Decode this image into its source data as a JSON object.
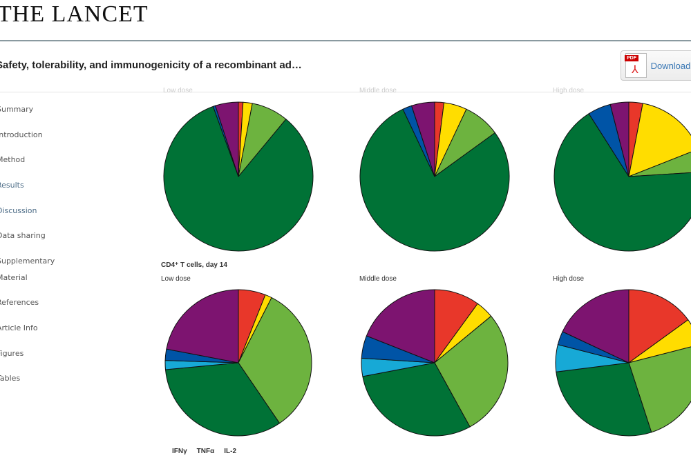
{
  "header": {
    "logo": "THE LANCET",
    "article_title": "Safety, tolerability, and immunogenicity of a recombinant ad…",
    "download_label": "Download PDF",
    "pdf_badge": "PDF"
  },
  "sidebar": {
    "items": [
      {
        "label": "Summary"
      },
      {
        "label": "Introduction"
      },
      {
        "label": "Method"
      },
      {
        "label": "Results"
      },
      {
        "label": "Discussion"
      },
      {
        "label": "Data sharing"
      },
      {
        "label": "Supplementary"
      },
      {
        "label": "Material"
      },
      {
        "label": "References"
      },
      {
        "label": "Article Info"
      },
      {
        "label": "Figures"
      },
      {
        "label": "Tables"
      }
    ]
  },
  "figure": {
    "section_label": "CD4⁺ T cells, day 14",
    "top_labels": [
      "Low dose",
      "Middle dose",
      "High dose"
    ],
    "bottom_labels": [
      "Low dose",
      "Middle dose",
      "High dose"
    ],
    "legend": [
      "IFNγ",
      "TNFα",
      "IL-2"
    ]
  },
  "colors": [
    "#e8372a",
    "#ffdd00",
    "#6db33f",
    "#007236",
    "#17a9d6",
    "#0054a6",
    "#7d1470"
  ],
  "chart_data": [
    {
      "type": "pie",
      "title": "Low dose (top row)",
      "values": [
        1,
        2,
        8,
        83.5,
        0,
        0.5,
        5
      ]
    },
    {
      "type": "pie",
      "title": "Middle dose (top row)",
      "values": [
        2,
        5,
        8,
        78,
        0,
        2,
        5
      ]
    },
    {
      "type": "pie",
      "title": "High dose (top row)",
      "values": [
        3,
        16,
        5,
        67,
        0,
        5,
        4
      ]
    },
    {
      "type": "pie",
      "title": "CD4+ T cells, day 14 – Low dose",
      "values": [
        6,
        1.5,
        33,
        33,
        2,
        2.5,
        22
      ]
    },
    {
      "type": "pie",
      "title": "CD4+ T cells, day 14 – Middle dose",
      "values": [
        10,
        4,
        28,
        30,
        4,
        5,
        19
      ]
    },
    {
      "type": "pie",
      "title": "CD4+ T cells, day 14 – High dose",
      "values": [
        15,
        6,
        24,
        28,
        6,
        3,
        18
      ]
    }
  ]
}
